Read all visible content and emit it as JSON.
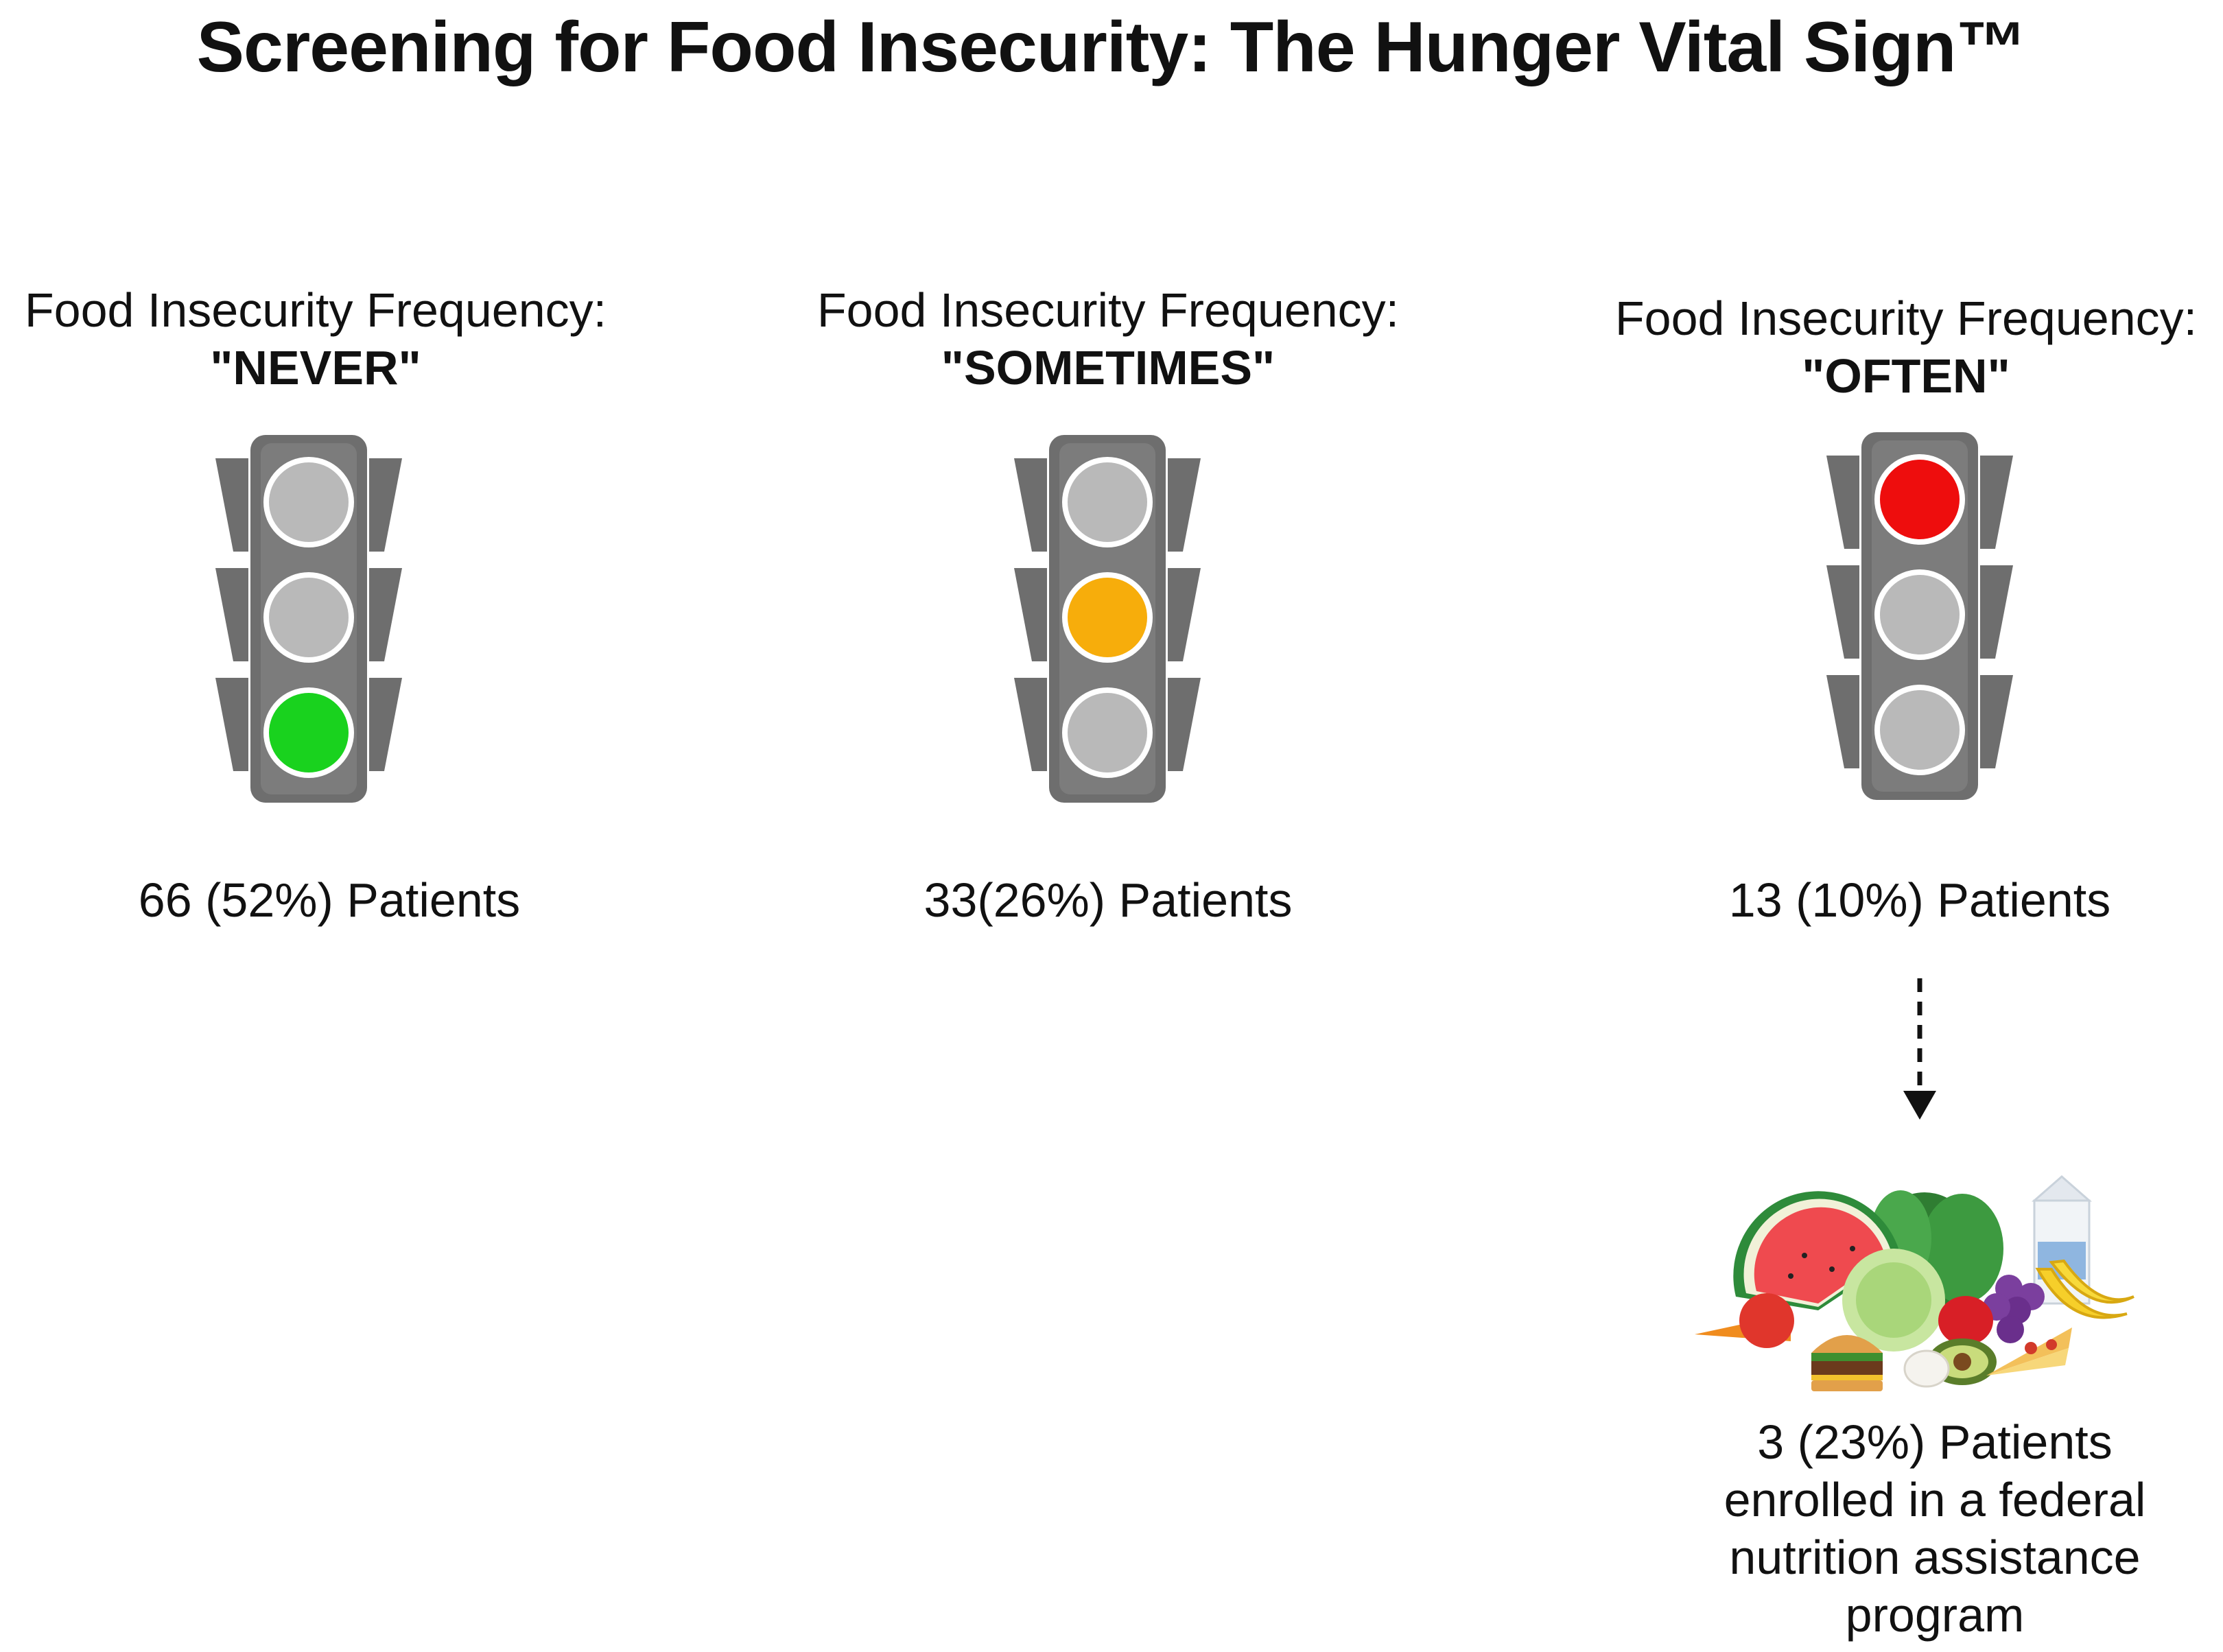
{
  "title": "Screening for Food Insecurity: The Hunger Vital Sign™",
  "panels": [
    {
      "label": "Food Insecurity Frequency:",
      "value": "\"NEVER\"",
      "active_light": "green",
      "count": "66 (52%) Patients"
    },
    {
      "label": "Food Insecurity Frequency:",
      "value": "\"SOMETIMES\"",
      "active_light": "yellow",
      "count": "33(26%) Patients"
    },
    {
      "label": "Food Insecurity Frequency:",
      "value": "\"OFTEN\"",
      "active_light": "red",
      "count": "13 (10%) Patients"
    }
  ],
  "outcome": {
    "line1": "3 (23%) Patients",
    "line2": "enrolled in a federal",
    "line3": "nutrition assistance",
    "line4": "program"
  },
  "colors": {
    "housing": "#6e6e6e",
    "lamp_off": "#b9b9b9",
    "green": "#19d21e",
    "yellow": "#f7ad0b",
    "red": "#ee0d0d"
  }
}
